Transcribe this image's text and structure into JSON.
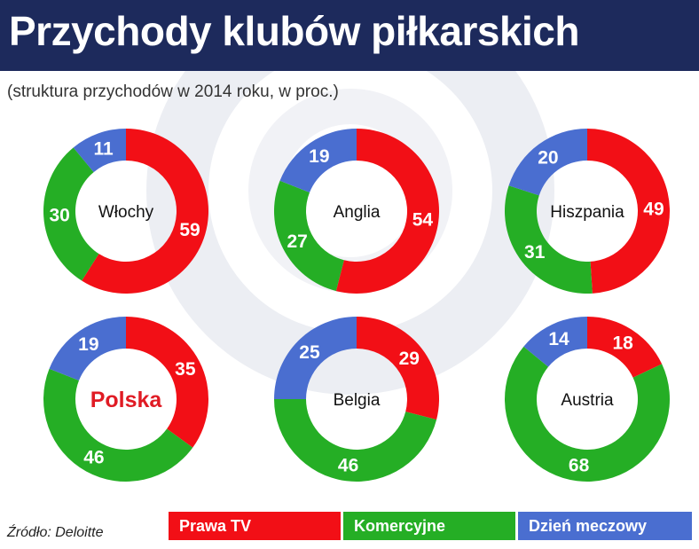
{
  "header": {
    "title": "Przychody klubów piłkarskich"
  },
  "subtitle": "(struktura przychodów w 2014 roku, w proc.)",
  "source": "Źródło: Deloitte",
  "colors": {
    "prawa_tv": "#f20f16",
    "komercyjne": "#25ae25",
    "dzien_meczowy": "#4a6ed0",
    "highlight_label": "#e01b24",
    "header_bg": "#1d2a5c"
  },
  "legend": [
    {
      "label": "Prawa TV",
      "color": "#f20f16"
    },
    {
      "label": "Komercyjne",
      "color": "#25ae25"
    },
    {
      "label": "Dzień meczowy",
      "color": "#4a6ed0"
    }
  ],
  "chart_data": {
    "type": "pie",
    "variant": "donut",
    "series_names": [
      "Prawa TV",
      "Komercyjne",
      "Dzień meczowy"
    ],
    "charts": [
      {
        "country": "Włochy",
        "values": [
          59,
          30,
          11
        ],
        "highlight": false
      },
      {
        "country": "Anglia",
        "values": [
          54,
          27,
          19
        ],
        "highlight": false
      },
      {
        "country": "Hiszpania",
        "values": [
          49,
          31,
          20
        ],
        "highlight": false
      },
      {
        "country": "Polska",
        "values": [
          35,
          46,
          19
        ],
        "highlight": true
      },
      {
        "country": "Belgia",
        "values": [
          29,
          46,
          25
        ],
        "highlight": false
      },
      {
        "country": "Austria",
        "values": [
          18,
          68,
          14
        ],
        "highlight": false
      }
    ]
  }
}
